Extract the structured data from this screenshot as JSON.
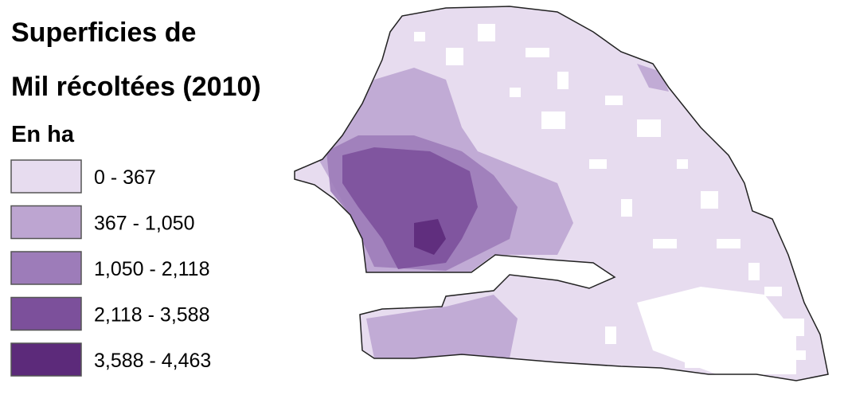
{
  "title_lines": [
    "Superficies de",
    "Mil récoltées (2010)"
  ],
  "unit": "En ha",
  "legend": [
    {
      "label": "0 - 367",
      "color": "#e7dcef"
    },
    {
      "label": "367 - 1,050",
      "color": "#bda5d1"
    },
    {
      "label": "1,050 - 2,118",
      "color": "#9d7cb9"
    },
    {
      "label": "2,118 - 3,588",
      "color": "#7c509b"
    },
    {
      "label": "3,588 - 4,463",
      "color": "#5c2a7a"
    }
  ]
}
